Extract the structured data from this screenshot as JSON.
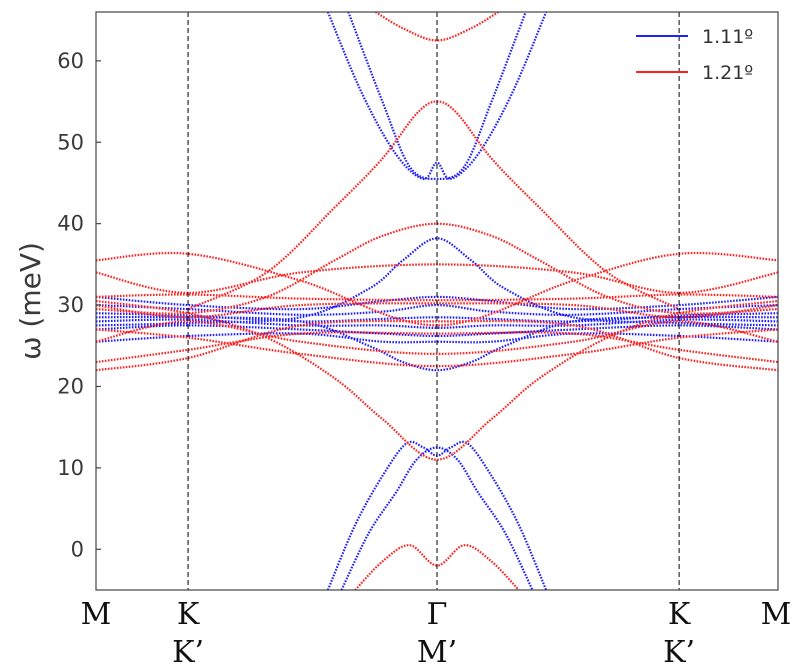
{
  "chart_data": {
    "type": "line",
    "title": "",
    "ylabel": "ω (meV)",
    "ylim": [
      -5,
      66
    ],
    "xlim": [
      0,
      1
    ],
    "yticks": [
      0,
      10,
      20,
      30,
      40,
      50,
      60
    ],
    "grid": false,
    "legend_position": "top-right",
    "high_symmetry_points": [
      {
        "x": 0.0,
        "top": "M",
        "bottom": ""
      },
      {
        "x": 0.135,
        "top": "K",
        "bottom": "K’"
      },
      {
        "x": 0.5,
        "top": "Γ",
        "bottom": "M’"
      },
      {
        "x": 0.855,
        "top": "K",
        "bottom": "K’"
      },
      {
        "x": 1.0,
        "top": "M",
        "bottom": ""
      }
    ],
    "series": [
      {
        "name": "1.11º",
        "color": "#1f1fff",
        "bands": [
          {
            "x": [
              0.0,
              0.135,
              0.3,
              0.42,
              0.5,
              0.58,
              0.7,
              0.855,
              1.0
            ],
            "y": [
              31.0,
              30.0,
              29.5,
              30.5,
              31.0,
              30.5,
              29.5,
              30.0,
              31.0
            ]
          },
          {
            "x": [
              0.0,
              0.135,
              0.3,
              0.42,
              0.5,
              0.58,
              0.7,
              0.855,
              1.0
            ],
            "y": [
              30.0,
              29.5,
              28.8,
              29.2,
              30.0,
              29.2,
              28.8,
              29.5,
              30.0
            ]
          },
          {
            "x": [
              0.0,
              0.135,
              0.3,
              0.42,
              0.5,
              0.58,
              0.7,
              0.855,
              1.0
            ],
            "y": [
              29.0,
              28.7,
              28.0,
              28.3,
              28.5,
              28.3,
              28.0,
              28.7,
              29.0
            ]
          },
          {
            "x": [
              0.0,
              0.135,
              0.3,
              0.42,
              0.5,
              0.58,
              0.7,
              0.855,
              1.0
            ],
            "y": [
              28.0,
              28.2,
              27.5,
              27.5,
              27.2,
              27.5,
              27.5,
              28.2,
              28.0
            ]
          },
          {
            "x": [
              0.0,
              0.135,
              0.3,
              0.42,
              0.5,
              0.58,
              0.7,
              0.855,
              1.0
            ],
            "y": [
              27.0,
              27.5,
              27.0,
              26.5,
              26.2,
              26.5,
              27.0,
              27.5,
              27.0
            ]
          },
          {
            "x": [
              0.0,
              0.135,
              0.3,
              0.42,
              0.5,
              0.58,
              0.7,
              0.855,
              1.0
            ],
            "y": [
              25.5,
              26.2,
              26.5,
              25.5,
              25.5,
              25.5,
              26.5,
              26.2,
              25.5
            ]
          },
          {
            "x": [
              0.0,
              0.135,
              0.3,
              0.4,
              0.45,
              0.5,
              0.55,
              0.6,
              0.7,
              0.855,
              1.0
            ],
            "y": [
              27.5,
              27.8,
              28.5,
              32.0,
              35.5,
              38.2,
              35.5,
              32.0,
              28.5,
              27.8,
              27.5
            ]
          },
          {
            "x": [
              0.0,
              0.135,
              0.3,
              0.4,
              0.45,
              0.5,
              0.55,
              0.6,
              0.7,
              0.855,
              1.0
            ],
            "y": [
              28.5,
              28.5,
              28.0,
              25.0,
              23.0,
              22.0,
              23.0,
              25.0,
              28.0,
              28.5,
              28.5
            ]
          },
          {
            "x": [
              0.37,
              0.42,
              0.46,
              0.5,
              0.54,
              0.58,
              0.63
            ],
            "y": [
              66.0,
              55.0,
              47.0,
              45.5,
              47.0,
              55.0,
              66.0
            ]
          },
          {
            "x": [
              0.34,
              0.39,
              0.44,
              0.48,
              0.5,
              0.52,
              0.56,
              0.61,
              0.66
            ],
            "y": [
              66.0,
              56.0,
              48.5,
              45.5,
              47.5,
              45.5,
              48.5,
              56.0,
              66.0
            ]
          },
          {
            "x": [
              0.34,
              0.38,
              0.42,
              0.455,
              0.48,
              0.5,
              0.52,
              0.545,
              0.58,
              0.62,
              0.66
            ],
            "y": [
              -5.0,
              3.0,
              9.0,
              13.0,
              12.5,
              11.5,
              12.5,
              13.0,
              9.0,
              3.0,
              -5.0
            ]
          },
          {
            "x": [
              0.36,
              0.4,
              0.44,
              0.47,
              0.5,
              0.53,
              0.56,
              0.6,
              0.64
            ],
            "y": [
              -5.0,
              2.0,
              7.0,
              11.0,
              12.5,
              11.0,
              7.0,
              2.0,
              -5.0
            ]
          }
        ]
      },
      {
        "name": "1.21º",
        "color": "#ff2020",
        "bands": [
          {
            "x": [
              0.0,
              0.135,
              0.3,
              0.5,
              0.7,
              0.855,
              1.0
            ],
            "y": [
              35.5,
              36.3,
              33.0,
              27.5,
              33.0,
              36.3,
              35.5
            ]
          },
          {
            "x": [
              0.0,
              0.135,
              0.3,
              0.5,
              0.7,
              0.855,
              1.0
            ],
            "y": [
              34.0,
              31.5,
              34.0,
              35.0,
              34.0,
              31.5,
              34.0
            ]
          },
          {
            "x": [
              0.0,
              0.135,
              0.3,
              0.5,
              0.7,
              0.855,
              1.0
            ],
            "y": [
              31.0,
              31.3,
              30.8,
              30.6,
              30.8,
              31.3,
              31.0
            ]
          },
          {
            "x": [
              0.0,
              0.135,
              0.3,
              0.5,
              0.7,
              0.855,
              1.0
            ],
            "y": [
              30.0,
              28.5,
              30.0,
              30.2,
              30.0,
              28.5,
              30.0
            ]
          },
          {
            "x": [
              0.0,
              0.135,
              0.3,
              0.5,
              0.7,
              0.855,
              1.0
            ],
            "y": [
              27.0,
              26.0,
              24.0,
              22.5,
              24.0,
              26.0,
              27.0
            ]
          },
          {
            "x": [
              0.0,
              0.135,
              0.3,
              0.5,
              0.7,
              0.855,
              1.0
            ],
            "y": [
              25.5,
              28.0,
              25.5,
              24.0,
              25.5,
              28.0,
              25.5
            ]
          },
          {
            "x": [
              0.0,
              0.135,
              0.3,
              0.5,
              0.7,
              0.855,
              1.0
            ],
            "y": [
              23.0,
              24.5,
              26.5,
              26.5,
              26.5,
              24.5,
              23.0
            ]
          },
          {
            "x": [
              0.0,
              0.135,
              0.3,
              0.5,
              0.7,
              0.855,
              1.0
            ],
            "y": [
              22.0,
              23.5,
              27.5,
              28.0,
              27.5,
              23.5,
              22.0
            ]
          },
          {
            "x": [
              0.0,
              0.135,
              0.25,
              0.35,
              0.42,
              0.5,
              0.58,
              0.65,
              0.75,
              0.855,
              1.0
            ],
            "y": [
              29.5,
              29.0,
              31.0,
              35.5,
              38.5,
              40.0,
              38.5,
              35.5,
              31.0,
              29.0,
              29.5
            ]
          },
          {
            "x": [
              0.0,
              0.135,
              0.25,
              0.35,
              0.42,
              0.5,
              0.58,
              0.65,
              0.75,
              0.855,
              1.0
            ],
            "y": [
              30.5,
              29.0,
              26.0,
              21.0,
              16.0,
              11.0,
              16.0,
              21.0,
              26.0,
              29.0,
              30.5
            ]
          },
          {
            "x": [
              0.135,
              0.25,
              0.35,
              0.42,
              0.47,
              0.5,
              0.53,
              0.58,
              0.65,
              0.75,
              0.855
            ],
            "y": [
              29.5,
              34.0,
              42.0,
              48.0,
              53.5,
              55.0,
              53.5,
              48.0,
              42.0,
              34.0,
              29.5
            ]
          },
          {
            "x": [
              0.41,
              0.45,
              0.5,
              0.55,
              0.59
            ],
            "y": [
              66.0,
              64.0,
              62.5,
              64.0,
              66.0
            ]
          },
          {
            "x": [
              0.38,
              0.42,
              0.46,
              0.5,
              0.54,
              0.58,
              0.62
            ],
            "y": [
              -5.0,
              -1.5,
              0.5,
              -2.0,
              0.5,
              -1.5,
              -5.0
            ]
          }
        ]
      }
    ]
  }
}
